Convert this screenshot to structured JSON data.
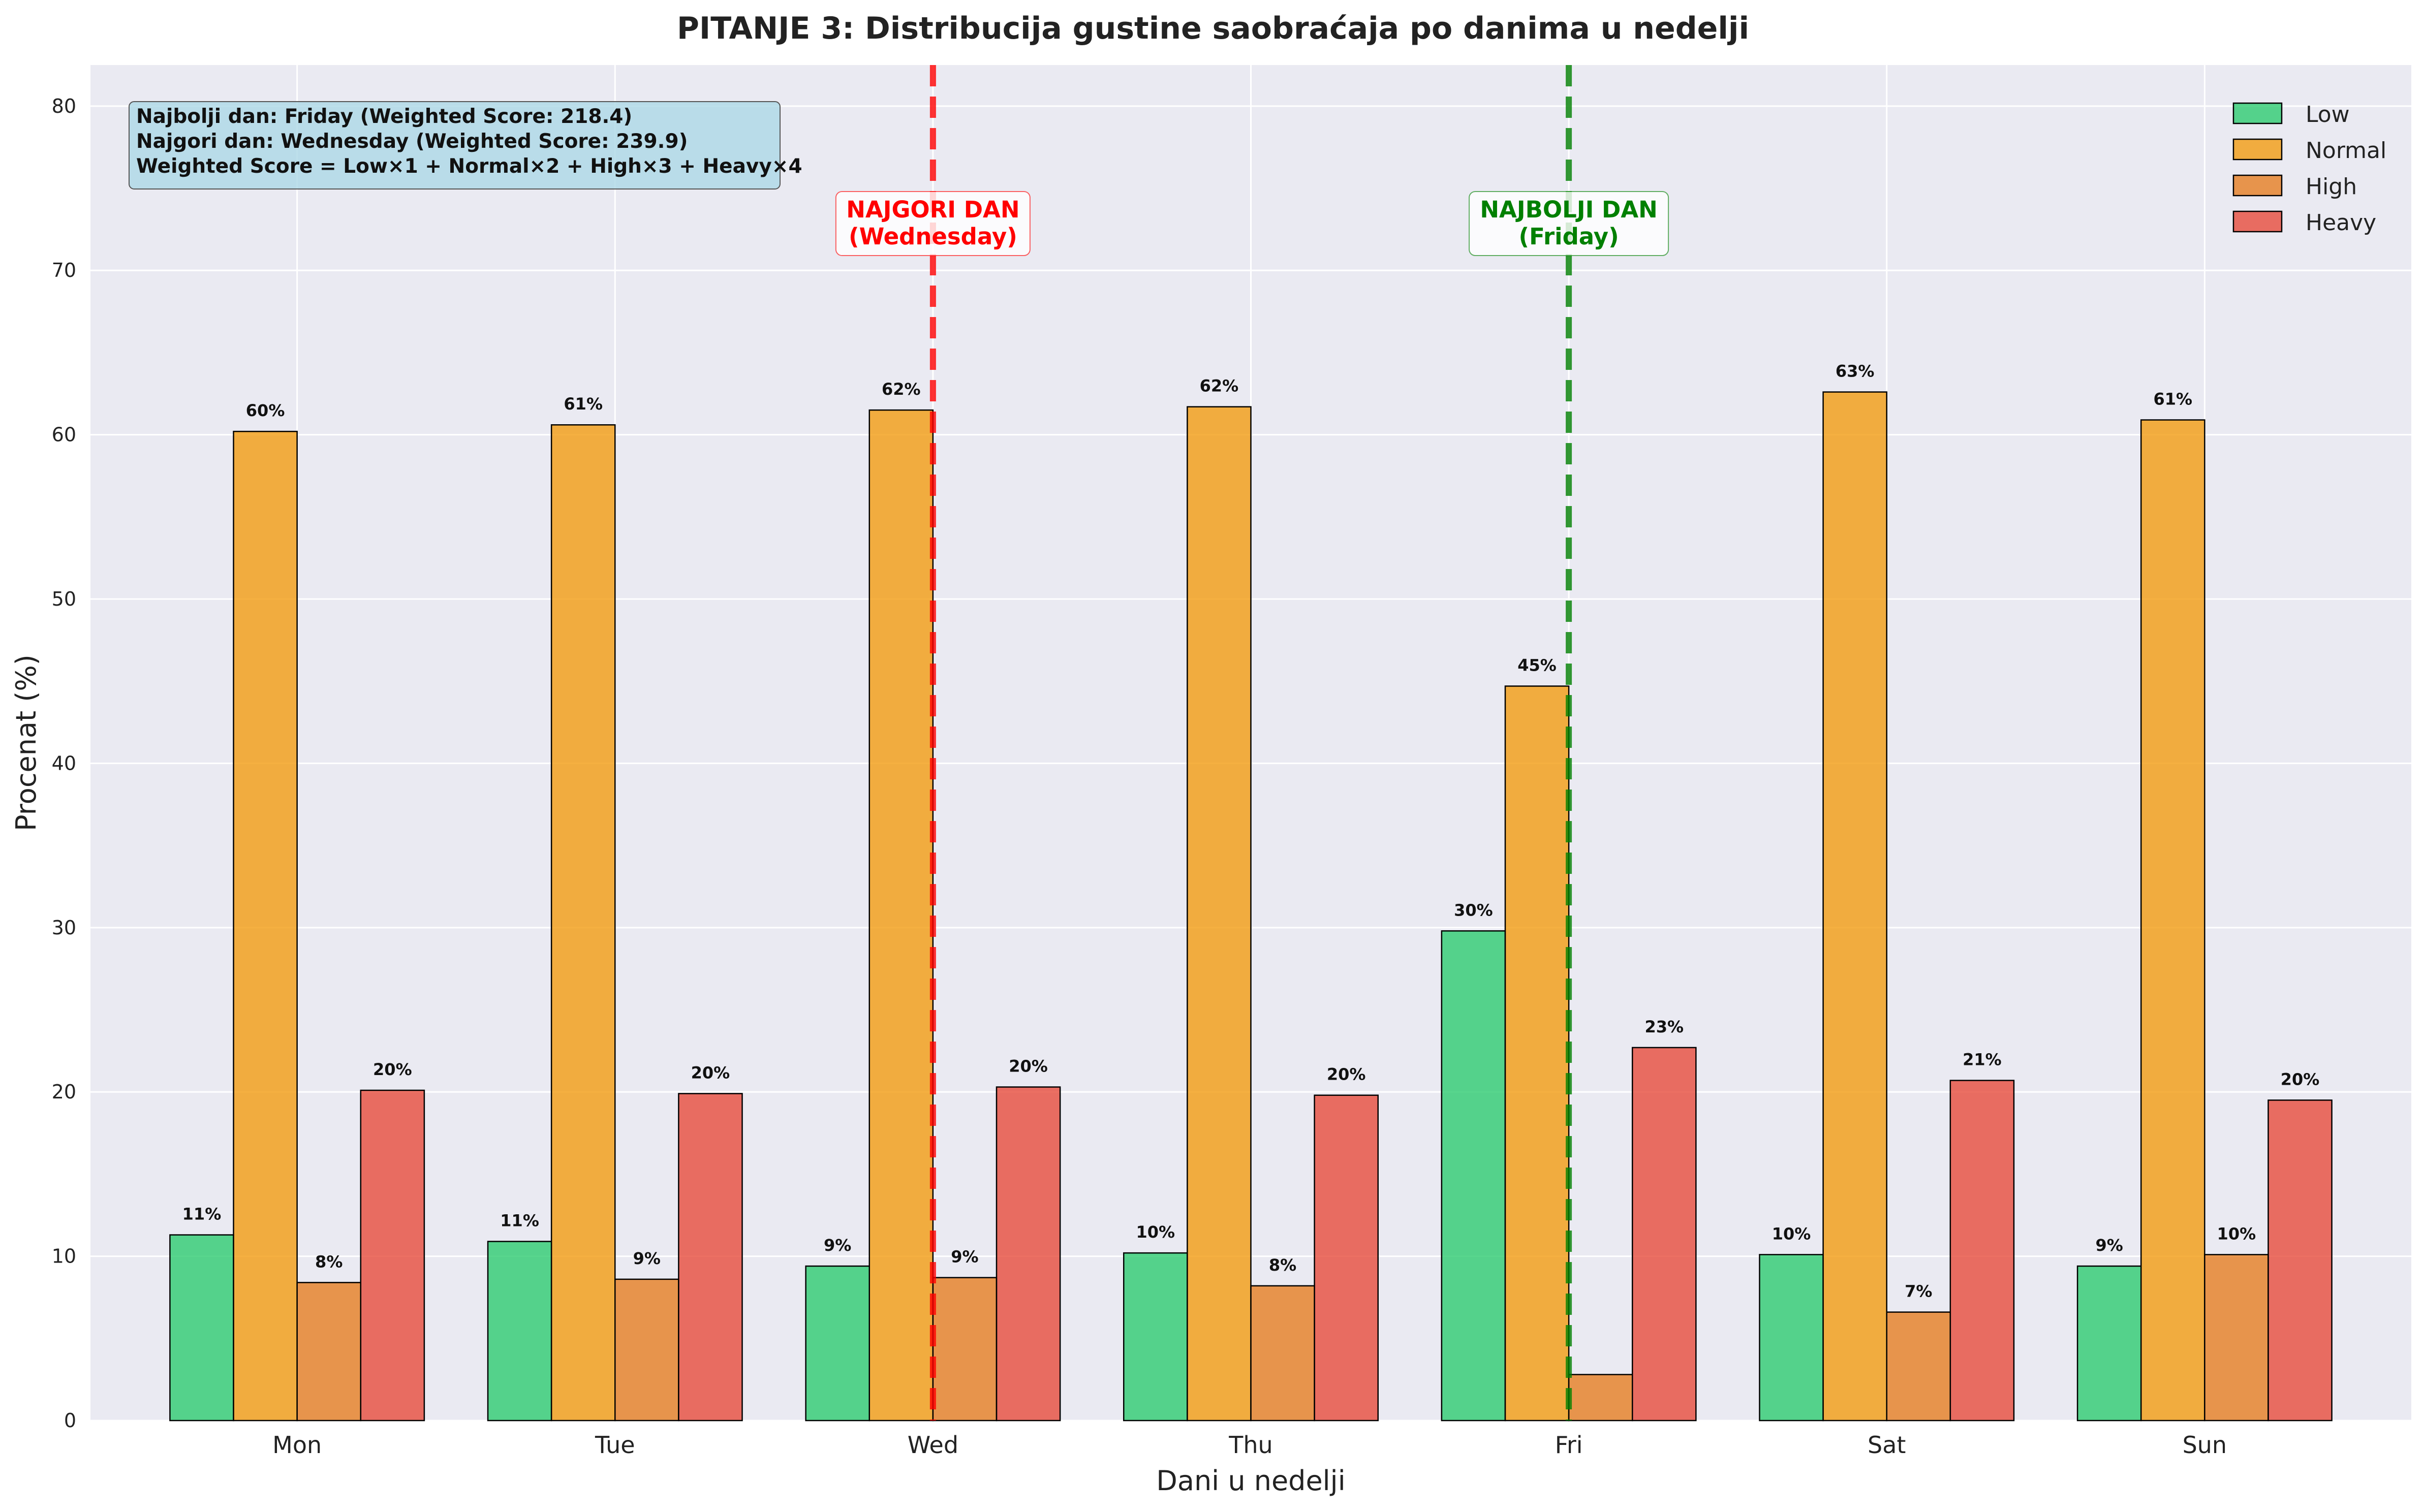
{
  "chart_data": {
    "type": "bar",
    "title": "PITANJE 3: Distribucija gustine saobraćaja po danima u nedelji",
    "xlabel": "Dani u nedelji",
    "ylabel": "Procenat (%)",
    "ylim": [
      0,
      82.5
    ],
    "yticks": [
      0,
      10,
      20,
      30,
      40,
      50,
      60,
      70,
      80
    ],
    "grid": true,
    "legend_position": "top-right",
    "categories": [
      "Mon",
      "Tue",
      "Wed",
      "Thu",
      "Fri",
      "Sat",
      "Sun"
    ],
    "series": [
      {
        "name": "Low",
        "color": "#2ecc71",
        "values": [
          11.3,
          10.9,
          9.4,
          10.2,
          29.8,
          10.1,
          9.4
        ],
        "labels": [
          "11%",
          "11%",
          "9%",
          "10%",
          "30%",
          "10%",
          "9%"
        ]
      },
      {
        "name": "Normal",
        "color": "#f39c12",
        "values": [
          60.2,
          60.6,
          61.5,
          61.7,
          44.7,
          62.6,
          60.9
        ],
        "labels": [
          "60%",
          "61%",
          "62%",
          "62%",
          "45%",
          "63%",
          "61%"
        ]
      },
      {
        "name": "High",
        "color": "#e67e22",
        "values": [
          8.4,
          8.6,
          8.7,
          8.2,
          2.8,
          6.6,
          10.1
        ],
        "labels": [
          "8%",
          "9%",
          "9%",
          "8%",
          "",
          "7%",
          "10%"
        ]
      },
      {
        "name": "Heavy",
        "color": "#e74c3c",
        "values": [
          20.1,
          19.9,
          20.3,
          19.8,
          22.7,
          20.7,
          19.5
        ],
        "labels": [
          "20%",
          "20%",
          "20%",
          "20%",
          "23%",
          "21%",
          "20%"
        ]
      }
    ],
    "markers": [
      {
        "category": "Wed",
        "line1": "NAJGORI DAN",
        "line2": "(Wednesday)",
        "color": "#ff0000"
      },
      {
        "category": "Fri",
        "line1": "NAJBOLJI DAN",
        "line2": "(Friday)",
        "color": "#008000"
      }
    ],
    "info_box": [
      "Najbolji dan: Friday (Weighted Score: 218.4)",
      "Najgori dan: Wednesday (Weighted Score: 239.9)",
      "Weighted Score = Low×1 + Normal×2 + High×3 + Heavy×4"
    ],
    "colors": {
      "plot_background": "#eaeaf2",
      "grid": "#ffffff",
      "info_box_fill": "#add8e6"
    }
  }
}
